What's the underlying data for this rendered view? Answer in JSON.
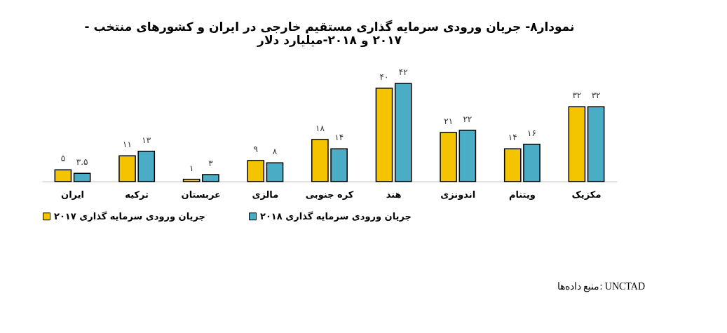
{
  "chart_data": {
    "type": "bar",
    "title": "نمودار۸- جریان ورودی سرمایه گذاری مستقیم خارجی در ایران و کشورهای منتخب -\n۲۰۱۷ و ۲۰۱۸-میلیارد دلار",
    "categories": [
      "ایران",
      "ترکیه",
      "عربستان",
      "مالزی",
      "کره جنوبی",
      "هند",
      "اندونزی",
      "ویتنام",
      "مکزیک"
    ],
    "series": [
      {
        "name": "جریان ورودی سرمایه گذاری ۲۰۱۷",
        "color": "#f5c400",
        "values": [
          5,
          11,
          1,
          9,
          18,
          40,
          21,
          14,
          32
        ],
        "value_labels": [
          "۵",
          "۱۱",
          "۱",
          "۹",
          "۱۸",
          "۴۰",
          "۲۱",
          "۱۴",
          "۳۲"
        ]
      },
      {
        "name": "جریان ورودی سرمایه گذاری ۲۰۱۸",
        "color": "#4bacc6",
        "values": [
          3.5,
          13,
          3,
          8,
          14,
          42,
          22,
          16,
          32
        ],
        "value_labels": [
          "۳.۵",
          "۱۳",
          "۳",
          "۸",
          "۱۴",
          "۴۲",
          "۲۲",
          "۱۶",
          "۳۲"
        ]
      }
    ],
    "legend": "bottom",
    "annotations": [
      "منبع داده‌ها: UNCTAD"
    ]
  }
}
